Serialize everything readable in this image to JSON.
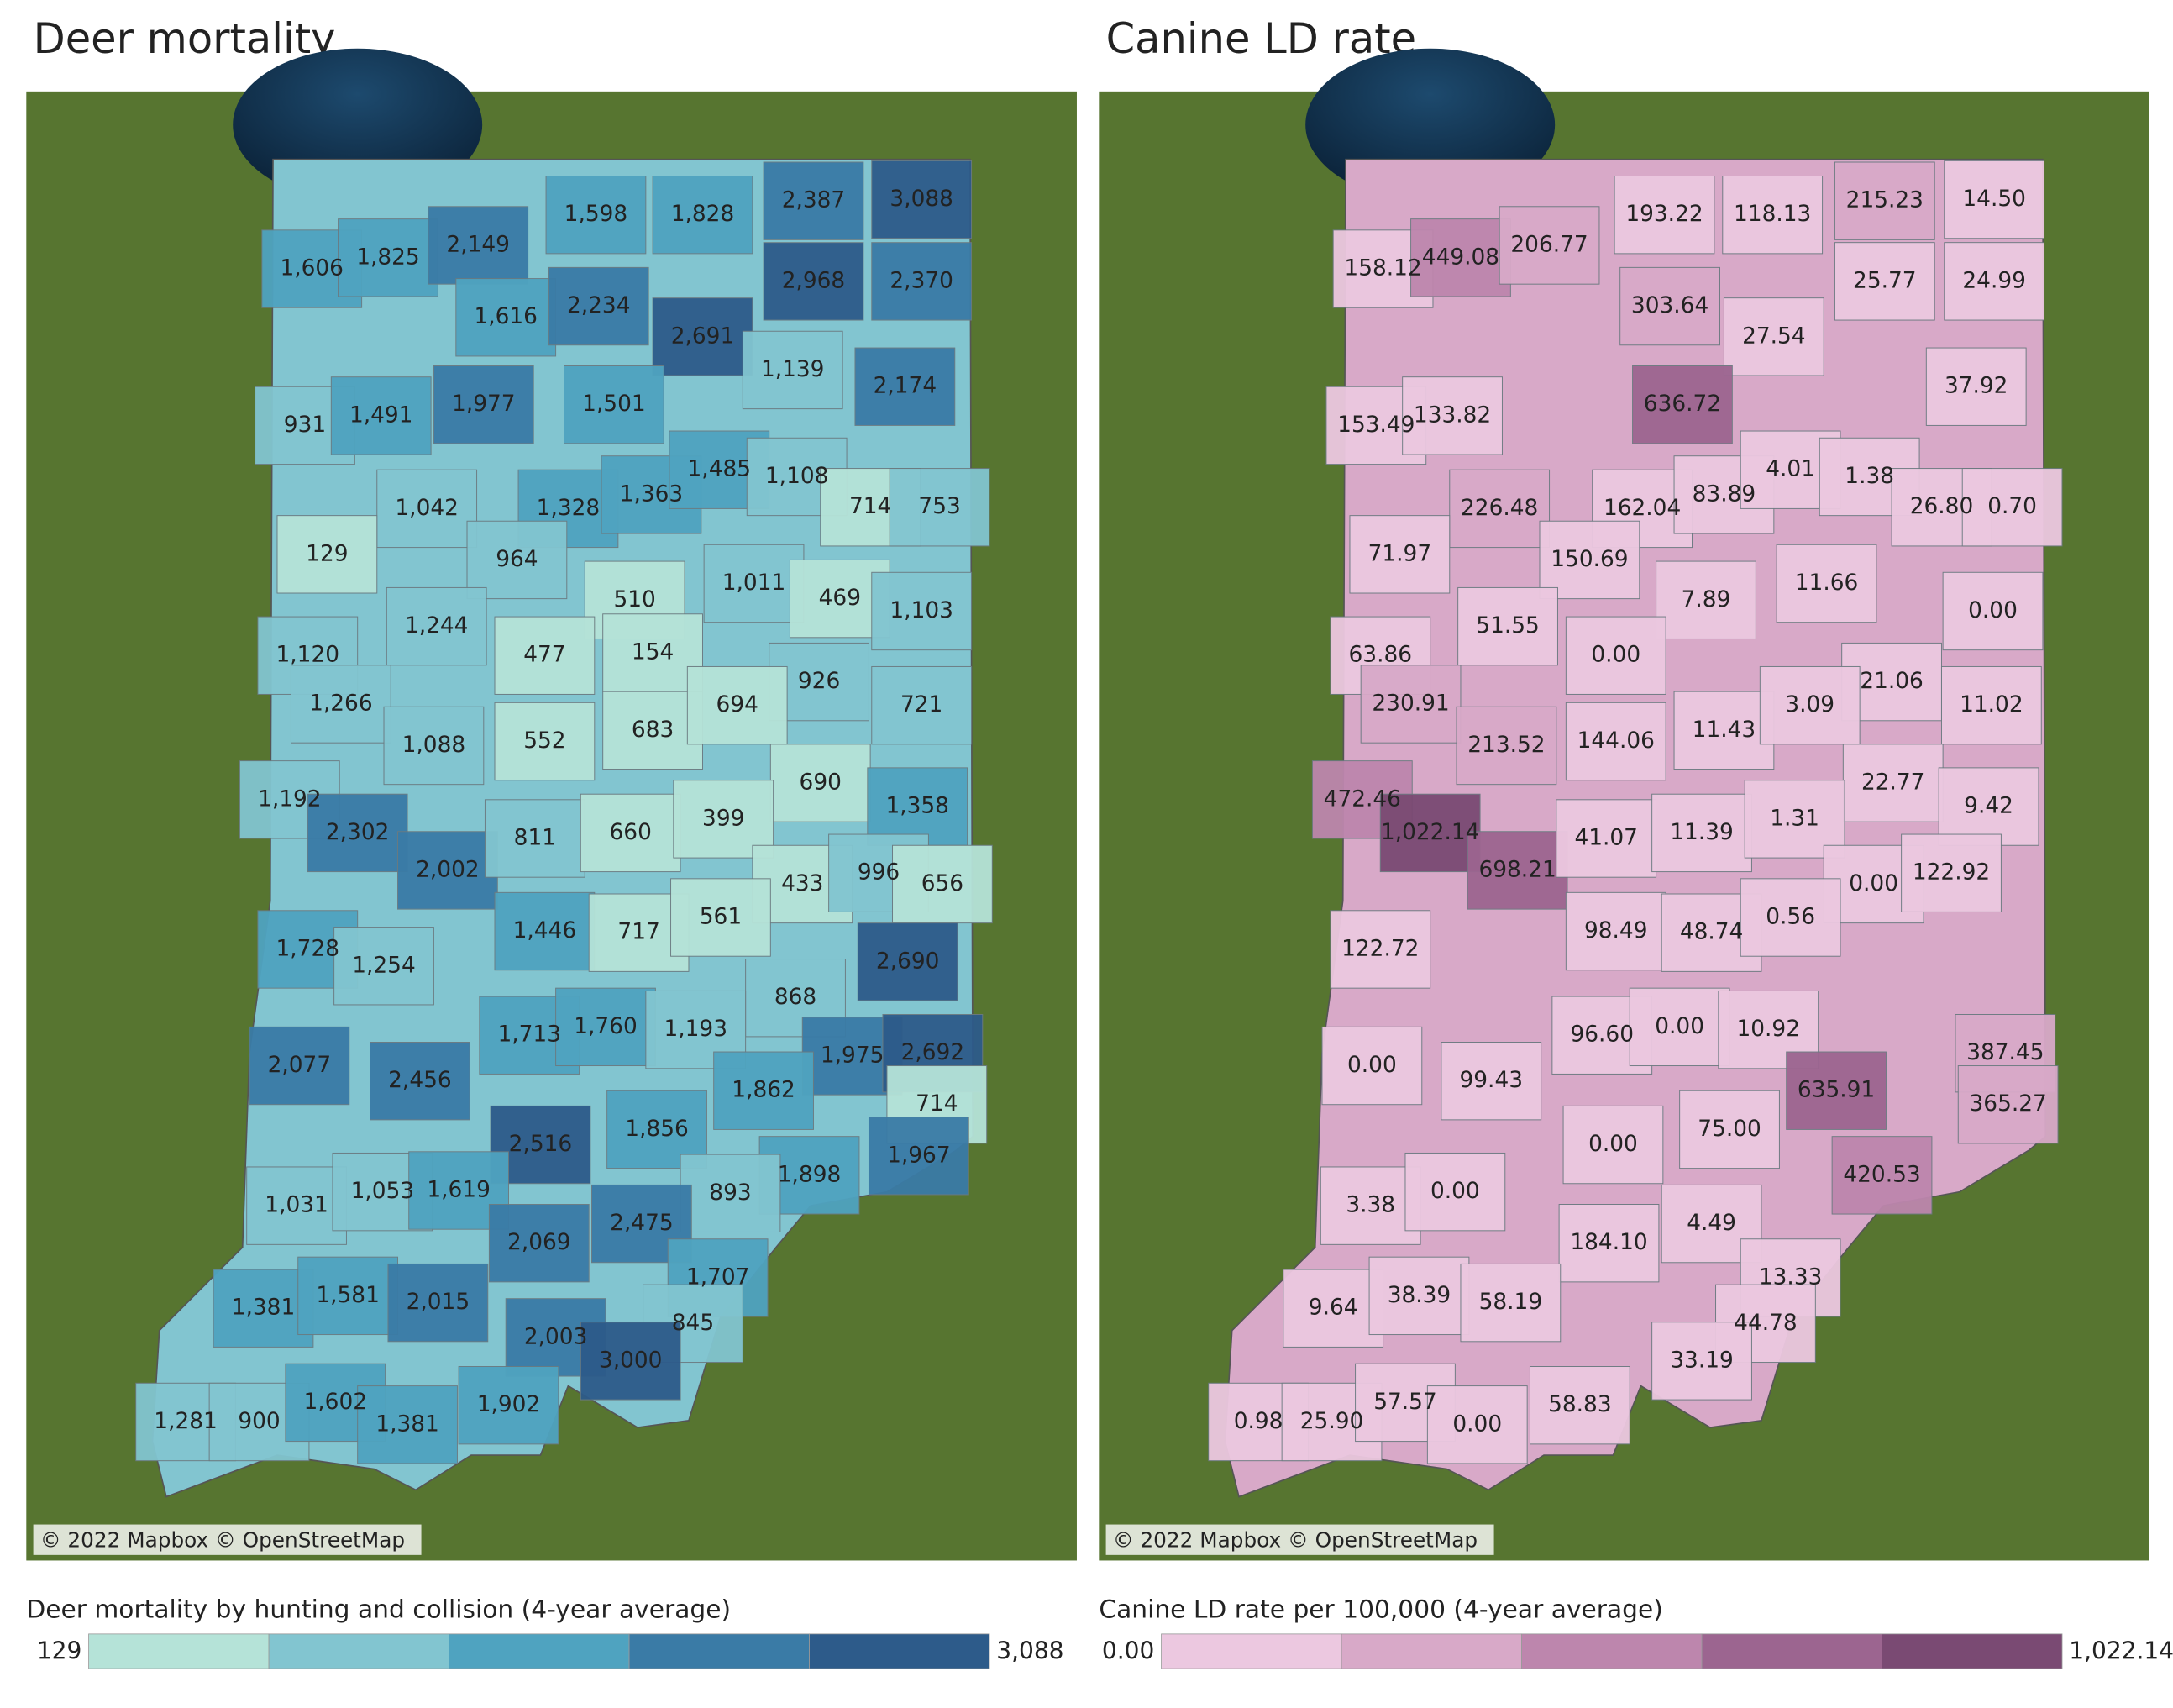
{
  "chart_data": [
    {
      "type": "map",
      "title": "Deer mortality",
      "legend_title": "Deer mortality by hunting and collision (4-year average)",
      "scale_min": 129,
      "scale_max": {
        "value": 3088,
        "label": "3,088"
      },
      "colors": [
        "#b5e3d8",
        "#82c5d0",
        "#4fa3c0",
        "#3a7ba6",
        "#2d5b8a"
      ],
      "attribution": "© 2022 Mapbox © OpenStreetMap",
      "values": [
        1606,
        1825,
        2149,
        1598,
        1828,
        2387,
        3088,
        1616,
        2234,
        2691,
        2968,
        2370,
        931,
        1491,
        1977,
        1501,
        1139,
        2174,
        1042,
        1328,
        1363,
        1485,
        1108,
        714,
        753,
        129,
        964,
        510,
        1011,
        469,
        1103,
        1120,
        1244,
        477,
        154,
        926,
        1266,
        1088,
        552,
        683,
        694,
        721,
        1192,
        690,
        1358,
        2302,
        2002,
        811,
        660,
        399,
        433,
        996,
        656,
        1728,
        1254,
        1446,
        717,
        561,
        2690,
        868,
        1713,
        1760,
        1193,
        1975,
        2692,
        2077,
        2456,
        1862,
        714,
        2516,
        1856,
        1967,
        1898,
        1031,
        1053,
        1619,
        893,
        2475,
        2069,
        1707,
        1381,
        1581,
        2015,
        2003,
        845,
        3000,
        1281,
        900,
        1602,
        1381,
        1902
      ],
      "value_labels": [
        "1,606",
        "1,825",
        "2,149",
        "1,598",
        "1,828",
        "2,387",
        "3,088",
        "1,616",
        "2,234",
        "2,691",
        "2,968",
        "2,370",
        "931",
        "1,491",
        "1,977",
        "1,501",
        "1,139",
        "2,174",
        "1,042",
        "1,328",
        "1,363",
        "1,485",
        "1,108",
        "714",
        "753",
        "129",
        "964",
        "510",
        "1,011",
        "469",
        "1,103",
        "1,120",
        "1,244",
        "477",
        "154",
        "926",
        "1,266",
        "1,088",
        "552",
        "683",
        "694",
        "721",
        "1,192",
        "690",
        "1,358",
        "2,302",
        "2,002",
        "811",
        "660",
        "399",
        "433",
        "996",
        "656",
        "1,728",
        "1,254",
        "1,446",
        "717",
        "561",
        "2,690",
        "868",
        "1,713",
        "1,760",
        "1,193",
        "1,975",
        "2,692",
        "2,077",
        "2,456",
        "1,862",
        "714",
        "2,516",
        "1,856",
        "1,967",
        "1,898",
        "1,031",
        "1,053",
        "1,619",
        "893",
        "2,475",
        "2,069",
        "1,707",
        "1,381",
        "1,581",
        "2,015",
        "2,003",
        "845",
        "3,000",
        "1,281",
        "900",
        "1,602",
        "1,381",
        "1,902"
      ]
    },
    {
      "type": "map",
      "title": "Canine LD rate",
      "legend_title": "Canine LD rate per 100,000 (4-year average)",
      "scale_min": {
        "value": 0,
        "label": "0.00"
      },
      "scale_max": {
        "value": 1022.14,
        "label": "1,022.14"
      },
      "colors": [
        "#ecc8e0",
        "#d8a9c8",
        "#bd86ad",
        "#9c6590",
        "#7a4a73"
      ],
      "attribution": "© 2022 Mapbox © OpenStreetMap",
      "values": [
        158.12,
        449.08,
        206.77,
        193.22,
        118.13,
        215.23,
        14.5,
        303.64,
        25.77,
        24.99,
        27.54,
        636.72,
        37.92,
        153.49,
        133.82,
        226.48,
        162.04,
        83.89,
        4.01,
        1.38,
        26.8,
        0.7,
        71.97,
        150.69,
        7.89,
        11.66,
        0,
        63.86,
        51.55,
        0,
        21.06,
        230.91,
        213.52,
        144.06,
        11.43,
        3.09,
        11.02,
        472.46,
        22.77,
        9.42,
        1022.14,
        698.21,
        41.07,
        11.39,
        1.31,
        0,
        122.92,
        122.72,
        98.49,
        48.74,
        0.56,
        96.6,
        0,
        10.92,
        387.45,
        0,
        99.43,
        635.91,
        365.27,
        0,
        75,
        420.53,
        3.38,
        0,
        4.49,
        184.1,
        13.33,
        9.64,
        38.39,
        58.19,
        44.78,
        33.19,
        0.98,
        25.9,
        57.57,
        0,
        58.83
      ],
      "value_labels": [
        "158.12",
        "449.08",
        "206.77",
        "193.22",
        "118.13",
        "215.23",
        "14.50",
        "303.64",
        "25.77",
        "24.99",
        "27.54",
        "636.72",
        "37.92",
        "153.49",
        "133.82",
        "226.48",
        "162.04",
        "83.89",
        "4.01",
        "1.38",
        "26.80",
        "0.70",
        "71.97",
        "150.69",
        "7.89",
        "11.66",
        "0.00",
        "63.86",
        "51.55",
        "0.00",
        "21.06",
        "230.91",
        "213.52",
        "144.06",
        "11.43",
        "3.09",
        "11.02",
        "472.46",
        "22.77",
        "9.42",
        "1,022.14",
        "698.21",
        "41.07",
        "11.39",
        "1.31",
        "0.00",
        "122.92",
        "122.72",
        "98.49",
        "48.74",
        "0.56",
        "96.60",
        "0.00",
        "10.92",
        "387.45",
        "0.00",
        "99.43",
        "635.91",
        "365.27",
        "0.00",
        "75.00",
        "420.53",
        "3.38",
        "0.00",
        "4.49",
        "184.10",
        "13.33",
        "9.64",
        "38.39",
        "58.19",
        "44.78",
        "33.19",
        "0.98",
        "25.90",
        "57.57",
        "0.00",
        "58.83"
      ]
    }
  ]
}
